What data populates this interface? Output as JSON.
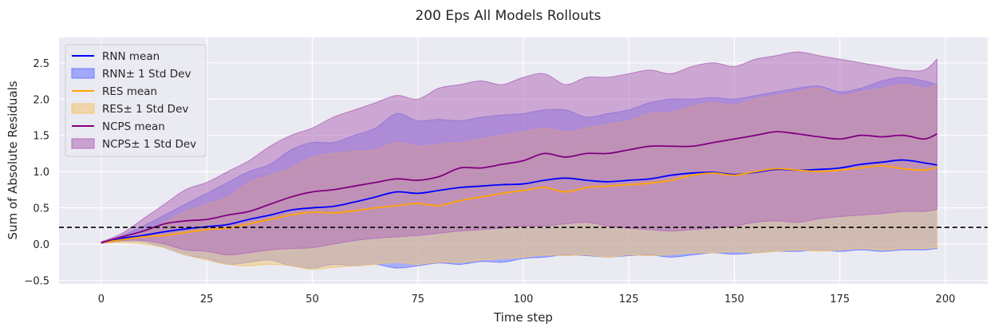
{
  "chart_data": {
    "type": "line",
    "title": "200 Eps All Models Rollouts",
    "xlabel": "Time step",
    "ylabel": "Sum of Absolute Residuals",
    "xlim": [
      -10,
      210
    ],
    "ylim": [
      -0.55,
      2.85
    ],
    "xticks": [
      0,
      25,
      50,
      75,
      100,
      125,
      150,
      175,
      200
    ],
    "yticks": [
      -0.5,
      0.0,
      0.5,
      1.0,
      1.5,
      2.0,
      2.5
    ],
    "ytick_labels": [
      "−0.5",
      "0.0",
      "0.5",
      "1.0",
      "1.5",
      "2.0",
      "2.5"
    ],
    "grid": true,
    "legend_position": "top-left",
    "threshold_line": {
      "y": 0.23,
      "color": "#000000",
      "style": "dashed"
    },
    "series": [
      {
        "name": "RNN mean",
        "band_name": "RNN± 1 Std Dev",
        "color": "#0000ff",
        "band_color": "#6f7cff",
        "x": [
          0,
          5,
          10,
          15,
          20,
          25,
          30,
          35,
          40,
          45,
          50,
          55,
          60,
          65,
          70,
          75,
          80,
          85,
          90,
          95,
          100,
          105,
          110,
          115,
          120,
          125,
          130,
          135,
          140,
          145,
          150,
          155,
          160,
          165,
          170,
          175,
          180,
          185,
          190,
          195,
          198
        ],
        "mean": [
          0.02,
          0.08,
          0.12,
          0.17,
          0.21,
          0.24,
          0.27,
          0.34,
          0.4,
          0.47,
          0.5,
          0.52,
          0.58,
          0.65,
          0.72,
          0.7,
          0.74,
          0.78,
          0.8,
          0.82,
          0.83,
          0.88,
          0.91,
          0.88,
          0.86,
          0.88,
          0.9,
          0.95,
          0.98,
          0.99,
          0.96,
          0.99,
          1.03,
          1.02,
          1.03,
          1.05,
          1.1,
          1.13,
          1.16,
          1.12,
          1.09
        ],
        "upper": [
          0.03,
          0.12,
          0.25,
          0.4,
          0.55,
          0.7,
          0.85,
          1.0,
          1.1,
          1.3,
          1.4,
          1.4,
          1.5,
          1.6,
          1.8,
          1.7,
          1.72,
          1.7,
          1.75,
          1.78,
          1.8,
          1.85,
          1.85,
          1.75,
          1.8,
          1.85,
          1.95,
          2.0,
          2.0,
          2.02,
          2.0,
          2.05,
          2.1,
          2.15,
          2.18,
          2.1,
          2.15,
          2.25,
          2.3,
          2.25,
          2.2
        ],
        "lower": [
          0.01,
          0.04,
          0.03,
          -0.05,
          -0.15,
          -0.2,
          -0.28,
          -0.25,
          -0.22,
          -0.3,
          -0.33,
          -0.28,
          -0.3,
          -0.28,
          -0.33,
          -0.3,
          -0.26,
          -0.28,
          -0.24,
          -0.25,
          -0.2,
          -0.18,
          -0.15,
          -0.16,
          -0.18,
          -0.16,
          -0.15,
          -0.18,
          -0.15,
          -0.12,
          -0.14,
          -0.12,
          -0.1,
          -0.1,
          -0.08,
          -0.1,
          -0.08,
          -0.1,
          -0.08,
          -0.08,
          -0.06
        ]
      },
      {
        "name": "RES mean",
        "band_name": "RES± 1 Std Dev",
        "color": "#ffa500",
        "band_color": "#f2c77a",
        "x": [
          0,
          5,
          10,
          15,
          20,
          25,
          30,
          35,
          40,
          45,
          50,
          55,
          60,
          65,
          70,
          75,
          80,
          85,
          90,
          95,
          100,
          105,
          110,
          115,
          120,
          125,
          130,
          135,
          140,
          145,
          150,
          155,
          160,
          165,
          170,
          175,
          180,
          185,
          190,
          195,
          198
        ],
        "mean": [
          0.02,
          0.06,
          0.1,
          0.12,
          0.16,
          0.2,
          0.22,
          0.28,
          0.34,
          0.4,
          0.44,
          0.43,
          0.46,
          0.5,
          0.53,
          0.56,
          0.53,
          0.6,
          0.65,
          0.7,
          0.74,
          0.78,
          0.72,
          0.78,
          0.8,
          0.82,
          0.84,
          0.88,
          0.95,
          0.98,
          0.95,
          1.0,
          1.04,
          1.02,
          1.0,
          1.02,
          1.05,
          1.08,
          1.04,
          1.02,
          1.06
        ],
        "upper": [
          0.03,
          0.1,
          0.18,
          0.3,
          0.45,
          0.55,
          0.65,
          0.85,
          0.95,
          1.05,
          1.2,
          1.25,
          1.28,
          1.3,
          1.4,
          1.35,
          1.38,
          1.4,
          1.45,
          1.5,
          1.55,
          1.6,
          1.55,
          1.6,
          1.65,
          1.7,
          1.8,
          1.82,
          1.9,
          1.95,
          1.92,
          2.0,
          2.05,
          2.1,
          2.15,
          2.05,
          2.1,
          2.15,
          2.2,
          2.15,
          2.2
        ],
        "lower": [
          0.01,
          0.02,
          0.0,
          -0.05,
          -0.15,
          -0.22,
          -0.28,
          -0.3,
          -0.28,
          -0.3,
          -0.35,
          -0.32,
          -0.3,
          -0.28,
          -0.25,
          -0.28,
          -0.25,
          -0.25,
          -0.22,
          -0.2,
          -0.18,
          -0.15,
          -0.16,
          -0.15,
          -0.18,
          -0.15,
          -0.16,
          -0.14,
          -0.12,
          -0.12,
          -0.1,
          -0.12,
          -0.1,
          -0.08,
          -0.1,
          -0.08,
          -0.06,
          -0.08,
          -0.06,
          -0.06,
          -0.05
        ]
      },
      {
        "name": "NCPS mean",
        "band_name": "NCPS± 1 Std Dev",
        "color": "#800080",
        "band_color": "#b36fb9",
        "x": [
          0,
          5,
          10,
          15,
          20,
          25,
          30,
          35,
          40,
          45,
          50,
          55,
          60,
          65,
          70,
          75,
          80,
          85,
          90,
          95,
          100,
          105,
          110,
          115,
          120,
          125,
          130,
          135,
          140,
          145,
          150,
          155,
          160,
          165,
          170,
          175,
          180,
          185,
          190,
          195,
          198
        ],
        "mean": [
          0.02,
          0.1,
          0.18,
          0.28,
          0.32,
          0.34,
          0.4,
          0.45,
          0.55,
          0.65,
          0.72,
          0.75,
          0.8,
          0.85,
          0.9,
          0.88,
          0.93,
          1.05,
          1.05,
          1.1,
          1.15,
          1.25,
          1.2,
          1.25,
          1.25,
          1.3,
          1.35,
          1.35,
          1.35,
          1.4,
          1.45,
          1.5,
          1.55,
          1.52,
          1.48,
          1.45,
          1.5,
          1.48,
          1.5,
          1.45,
          1.52
        ],
        "upper": [
          0.03,
          0.15,
          0.35,
          0.55,
          0.75,
          0.85,
          1.0,
          1.15,
          1.35,
          1.5,
          1.6,
          1.75,
          1.85,
          1.95,
          2.05,
          2.0,
          2.15,
          2.2,
          2.25,
          2.2,
          2.3,
          2.35,
          2.2,
          2.3,
          2.3,
          2.35,
          2.4,
          2.35,
          2.45,
          2.5,
          2.45,
          2.55,
          2.6,
          2.65,
          2.6,
          2.55,
          2.5,
          2.45,
          2.4,
          2.4,
          2.55
        ],
        "lower": [
          0.01,
          0.05,
          0.05,
          0.0,
          -0.08,
          -0.1,
          -0.15,
          -0.12,
          -0.08,
          -0.06,
          -0.05,
          0.0,
          0.05,
          0.08,
          0.1,
          0.12,
          0.15,
          0.18,
          0.2,
          0.22,
          0.25,
          0.25,
          0.28,
          0.3,
          0.25,
          0.22,
          0.2,
          0.18,
          0.2,
          0.22,
          0.25,
          0.3,
          0.32,
          0.3,
          0.35,
          0.38,
          0.4,
          0.42,
          0.45,
          0.45,
          0.48
        ]
      }
    ],
    "legend": [
      {
        "label": "RNN mean",
        "kind": "line",
        "color": "#0000ff"
      },
      {
        "label": "RNN± 1 Std Dev",
        "kind": "patch",
        "color": "#6f7cff"
      },
      {
        "label": "RES mean",
        "kind": "line",
        "color": "#ffa500"
      },
      {
        "label": "RES± 1 Std Dev",
        "kind": "patch",
        "color": "#f2c77a"
      },
      {
        "label": "NCPS mean",
        "kind": "line",
        "color": "#800080"
      },
      {
        "label": "NCPS± 1 Std Dev",
        "kind": "patch",
        "color": "#b36fb9"
      }
    ],
    "colors": {
      "plot_background": "#eaeaf2",
      "grid": "#ffffff",
      "text": "#262626"
    }
  }
}
